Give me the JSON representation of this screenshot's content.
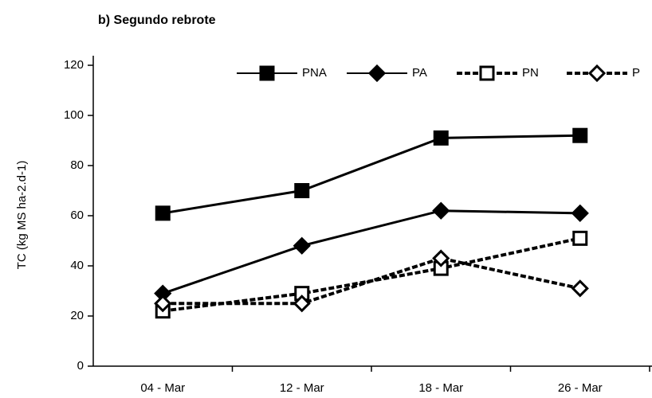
{
  "chart_data": {
    "type": "line",
    "title": "b) Segundo rebrote",
    "y_label": "TC (kg MS ha-2.d-1)",
    "categories": [
      "04  - Mar",
      "12  - Mar",
      "18  - Mar",
      "26  - Mar"
    ],
    "series": [
      {
        "name": "PNA",
        "color": "#000000",
        "marker": "square",
        "filled": true,
        "dashed": false,
        "values": [
          61,
          70,
          91,
          92
        ]
      },
      {
        "name": "PA",
        "color": "#000000",
        "marker": "diamond",
        "filled": true,
        "dashed": false,
        "values": [
          29,
          48,
          62,
          61
        ]
      },
      {
        "name": "PN",
        "color": "#000000",
        "marker": "square",
        "filled": false,
        "dashed": true,
        "values": [
          22,
          29,
          39,
          51
        ]
      },
      {
        "name": "P",
        "color": "#000000",
        "marker": "diamond",
        "filled": false,
        "dashed": true,
        "values": [
          25,
          25,
          43,
          31
        ]
      }
    ],
    "ylim": [
      0,
      120
    ],
    "yticks": [
      0,
      20,
      40,
      60,
      80,
      100,
      120
    ],
    "grid": false
  }
}
